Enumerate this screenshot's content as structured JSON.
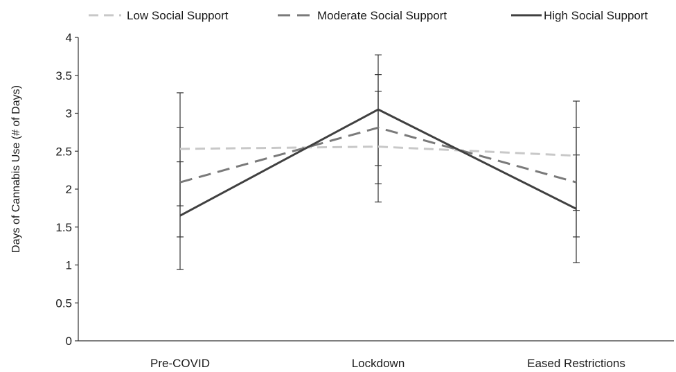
{
  "chart_data": {
    "type": "line",
    "categories": [
      "Pre-COVID",
      "Lockdown",
      "Eased Restrictions"
    ],
    "series": [
      {
        "name": "Low Social Support",
        "values": [
          2.53,
          2.56,
          2.44
        ],
        "error_low": [
          1.78,
          1.83,
          1.72
        ],
        "error_high": [
          3.27,
          3.29,
          3.16
        ],
        "color": "#c8c8c8",
        "dash": "long-dash"
      },
      {
        "name": "Moderate Social Support",
        "values": [
          2.09,
          2.81,
          2.09
        ],
        "error_low": [
          1.37,
          2.07,
          1.37
        ],
        "error_high": [
          2.81,
          3.51,
          2.81
        ],
        "color": "#7a7a7a",
        "dash": "dash"
      },
      {
        "name": "High Social Support",
        "values": [
          1.65,
          3.05,
          1.74
        ],
        "error_low": [
          0.94,
          2.31,
          1.03
        ],
        "error_high": [
          2.36,
          3.77,
          2.45
        ],
        "color": "#404040",
        "dash": "solid"
      }
    ],
    "xlabel": "",
    "ylabel": "Days of Cannabis Use (# of Days)",
    "ylim": [
      0,
      4
    ],
    "yticks": [
      "0",
      "0.5",
      "1",
      "1.5",
      "2",
      "2.5",
      "3",
      "3.5",
      "4"
    ],
    "legend": "top",
    "grid": false
  }
}
